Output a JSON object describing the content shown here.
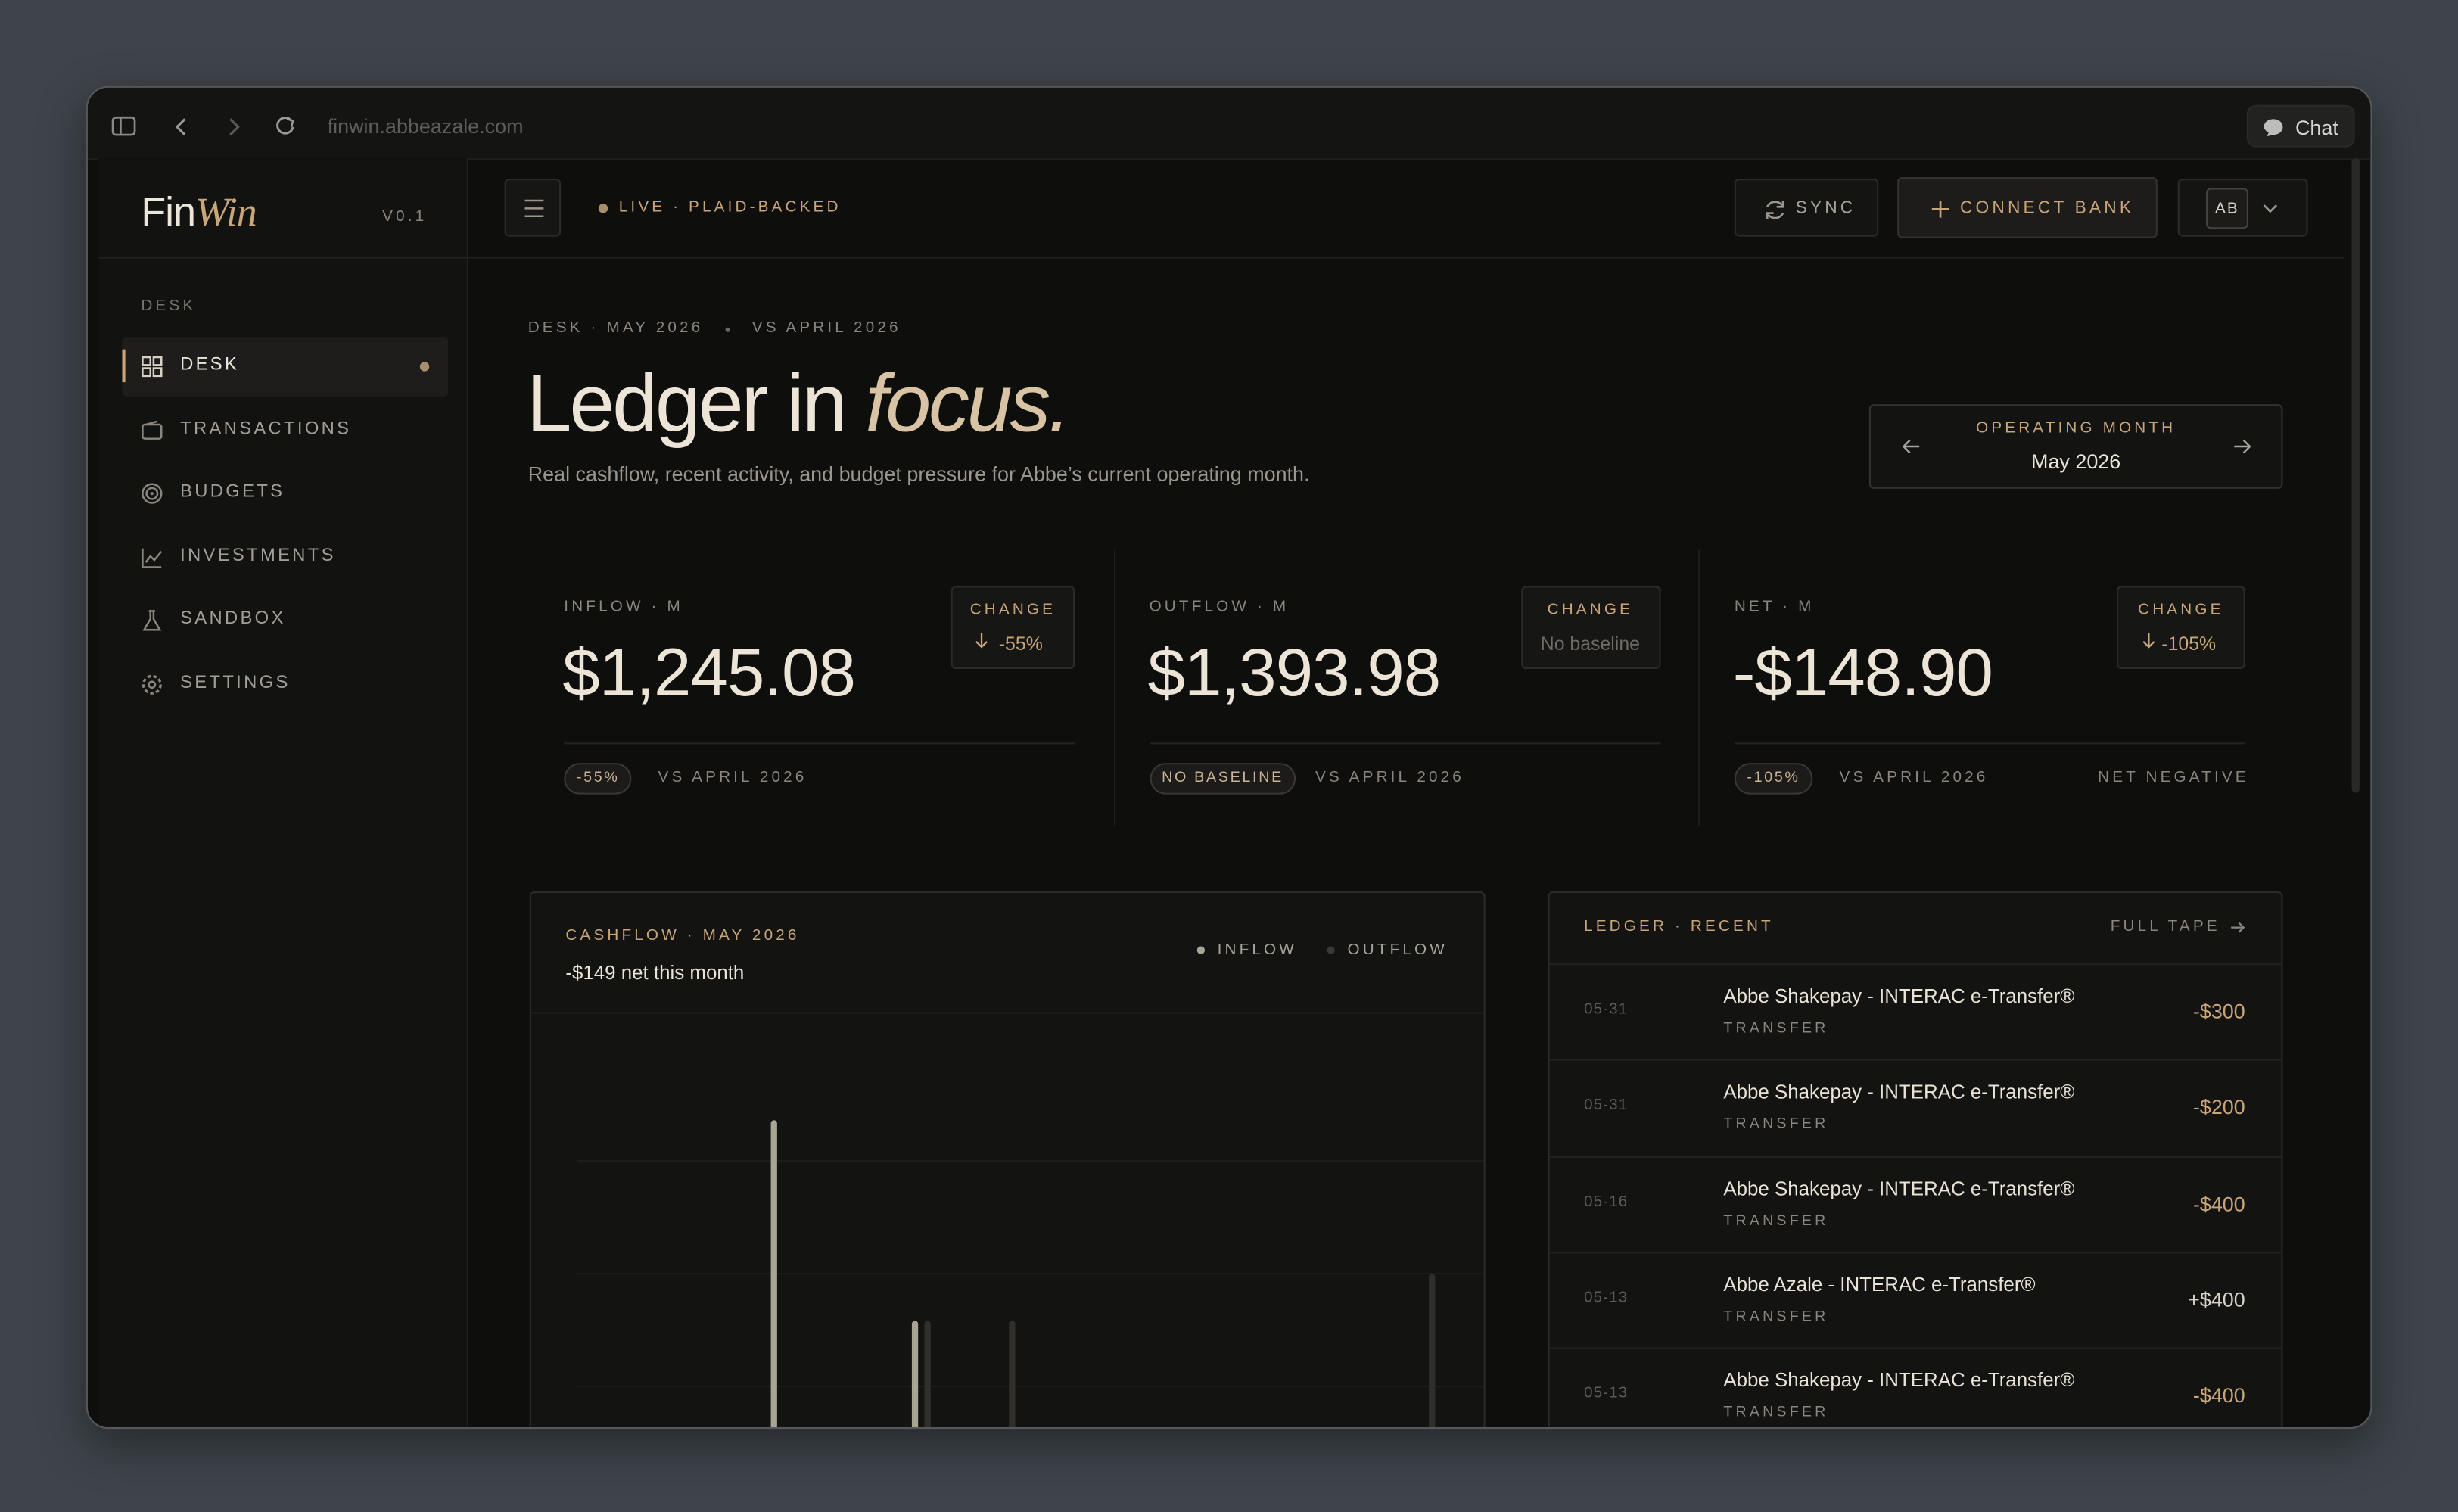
{
  "browser": {
    "url": "finwin.abbeazale.com",
    "chat": "Chat"
  },
  "sidebar": {
    "logo_prefix": "Fin",
    "logo_suffix": "Win",
    "version": "V0.1",
    "section": "DESK",
    "nav": [
      "DESK",
      "TRANSACTIONS",
      "BUDGETS",
      "INVESTMENTS",
      "SANDBOX",
      "SETTINGS"
    ]
  },
  "topbar": {
    "status": "LIVE · PLAID-BACKED",
    "sync": "SYNC",
    "connect": "CONNECT BANK",
    "avatar": "AB"
  },
  "header": {
    "eyebrow": "DESK · MAY 2026",
    "compare": "VS APRIL 2026",
    "title": "Ledger in",
    "title_em": "focus.",
    "subtitle": "Real cashflow, recent activity, and budget pressure for Abbe’s current operating month."
  },
  "month_picker": {
    "label": "OPERATING MONTH",
    "value": "May 2026"
  },
  "kpis": [
    {
      "label": "INFLOW · M",
      "value": "$1,245.08",
      "change_label": "CHANGE",
      "change": "-55%",
      "pill": "-55%",
      "compare": "VS APRIL 2026"
    },
    {
      "label": "OUTFLOW · M",
      "value": "$1,393.98",
      "change_label": "CHANGE",
      "change": "No baseline",
      "pill": "NO BASELINE",
      "compare": "VS APRIL 2026"
    },
    {
      "label": "NET · M",
      "value": "-$148.90",
      "change_label": "CHANGE",
      "change": "-105%",
      "pill": "-105%",
      "compare": "VS APRIL 2026",
      "note": "NET NEGATIVE"
    }
  ],
  "cashflow": {
    "title": "CASHFLOW · MAY 2026",
    "subtitle": "-$149 net this month",
    "legend": [
      "INFLOW",
      "OUTFLOW"
    ]
  },
  "ledger": {
    "title": "LEDGER · RECENT",
    "link": "FULL TAPE",
    "rows": [
      {
        "date": "05-31",
        "name": "Abbe Shakepay - INTERAC e-Transfer®",
        "category": "TRANSFER",
        "amount": "-$300"
      },
      {
        "date": "05-31",
        "name": "Abbe Shakepay - INTERAC e-Transfer®",
        "category": "TRANSFER",
        "amount": "-$200"
      },
      {
        "date": "05-16",
        "name": "Abbe Shakepay - INTERAC e-Transfer®",
        "category": "TRANSFER",
        "amount": "-$400"
      },
      {
        "date": "05-13",
        "name": "Abbe Azale - INTERAC e-Transfer®",
        "category": "TRANSFER",
        "amount": "+$400"
      },
      {
        "date": "05-13",
        "name": "Abbe Shakepay - INTERAC e-Transfer®",
        "category": "TRANSFER",
        "amount": "-$400"
      }
    ]
  }
}
